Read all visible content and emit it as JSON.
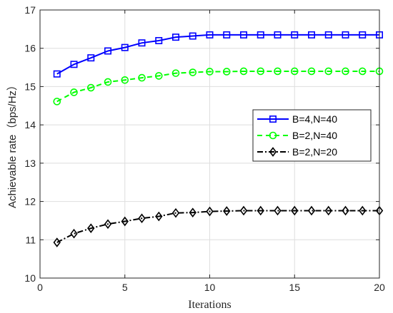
{
  "chart_data": {
    "type": "line",
    "xlabel": "Iterations",
    "ylabel": "Achievable rate（bps/Hz）",
    "xlim": [
      0,
      20
    ],
    "ylim": [
      10,
      17
    ],
    "xticks": [
      0,
      5,
      10,
      15,
      20
    ],
    "yticks": [
      10,
      11,
      12,
      13,
      14,
      15,
      16,
      17
    ],
    "grid": true,
    "legend_position": "right",
    "x": [
      1,
      2,
      3,
      4,
      5,
      6,
      7,
      8,
      9,
      10,
      11,
      12,
      13,
      14,
      15,
      16,
      17,
      18,
      19,
      20
    ],
    "series": [
      {
        "name": "B=4,N=40",
        "color": "#0000ff",
        "line_style": "solid",
        "marker": "square",
        "values": [
          15.33,
          15.58,
          15.75,
          15.93,
          16.02,
          16.14,
          16.2,
          16.29,
          16.32,
          16.35,
          16.35,
          16.35,
          16.35,
          16.35,
          16.35,
          16.35,
          16.35,
          16.35,
          16.35,
          16.35
        ]
      },
      {
        "name": "B=2,N=40",
        "color": "#00ff00",
        "line_style": "dashed",
        "marker": "circle",
        "values": [
          14.61,
          14.85,
          14.97,
          15.12,
          15.17,
          15.23,
          15.28,
          15.35,
          15.37,
          15.39,
          15.39,
          15.4,
          15.4,
          15.4,
          15.4,
          15.4,
          15.4,
          15.4,
          15.4,
          15.4
        ]
      },
      {
        "name": "B=2,N=20",
        "color": "#000000",
        "line_style": "dashdot",
        "marker": "diamond",
        "values": [
          10.93,
          11.16,
          11.3,
          11.41,
          11.48,
          11.56,
          11.61,
          11.7,
          11.71,
          11.74,
          11.75,
          11.76,
          11.76,
          11.76,
          11.76,
          11.76,
          11.76,
          11.76,
          11.76,
          11.76
        ]
      }
    ]
  }
}
